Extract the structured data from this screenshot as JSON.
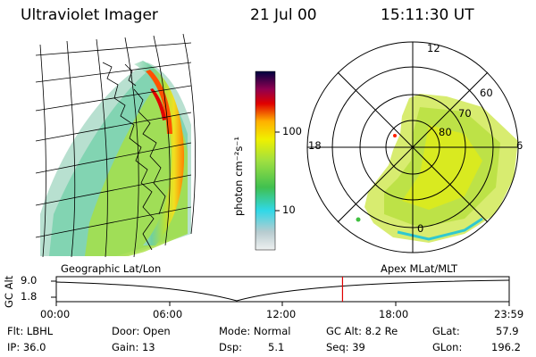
{
  "header": {
    "instrument": "Ultraviolet Imager",
    "date": "21 Jul 00",
    "time": "15:11:30 UT"
  },
  "colorbar": {
    "unit_label": "photon cm⁻²s⁻¹",
    "ticks": [
      "100",
      "10"
    ]
  },
  "polar_plot": {
    "mlt_labels": {
      "top": "12",
      "left": "18",
      "right": "6",
      "bottom": "0"
    },
    "lat_labels": [
      "60",
      "70",
      "80"
    ]
  },
  "projection_labels": {
    "left": "Geographic Lat/Lon",
    "right": "Apex MLat/MLT"
  },
  "altitude_strip": {
    "axis_label": "GC Alt",
    "max_label": "9.0",
    "min_label": "1.8",
    "time_ticks": [
      "00:00",
      "06:00",
      "12:00",
      "18:00",
      "23:59"
    ],
    "current_time_fraction": 0.632,
    "marker_color": "#e00000"
  },
  "status": {
    "filter": "Flt: LBHL",
    "ip": "IP: 36.0",
    "door": "Door: Open",
    "gain": "Gain: 13",
    "mode": "Mode: Normal",
    "dsp": "Dsp:",
    "dsp_value": "5.1",
    "gc_alt": "GC Alt: 8.2 Re",
    "seq": "Seq: 39",
    "glat_label": "GLat:",
    "glat_value": "57.9",
    "glon_label": "GLon:",
    "glon_value": "196.2"
  },
  "palette": {
    "colorbar_stops": [
      "#e8ecec",
      "#b0c4c8",
      "#30d0e0",
      "#40c040",
      "#b0e030",
      "#f0f000",
      "#ffb000",
      "#e00000",
      "#900040",
      "#400080",
      "#000040"
    ]
  }
}
